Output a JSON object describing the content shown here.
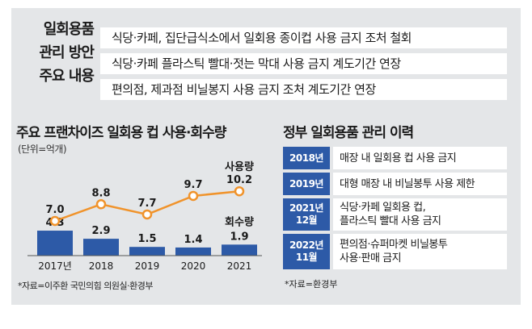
{
  "policy": {
    "title": "일회용품\n관리 방안\n주요 내용",
    "items": [
      "식당·카페, 집단급식소에서 일회용 종이컵 사용 금지 조처 철회",
      "식당·카페 플라스틱 빨대·젓는 막대 사용 금지 계도기간 연장",
      "편의점, 제과점 비닐봉지 사용 금지 조처 계도기간 연장"
    ]
  },
  "chart": {
    "title": "주요 프랜차이즈 일회용 컵 사용·회수량",
    "unit": "(단위=억개)",
    "source": "*자료=이주환 국민의힘 의원실·환경부"
  },
  "chart_data": {
    "type": "bar+line",
    "categories": [
      "2017년",
      "2018",
      "2019",
      "2020",
      "2021"
    ],
    "series": [
      {
        "name": "사용량",
        "type": "line",
        "values": [
          7.0,
          8.8,
          7.7,
          9.7,
          10.2
        ],
        "color": "#f0932b"
      },
      {
        "name": "회수량",
        "type": "bar",
        "values": [
          4.3,
          2.9,
          1.5,
          1.4,
          1.9
        ],
        "color": "#2d5aa7"
      }
    ],
    "value_labels": {
      "line": [
        "7.0",
        "8.8",
        "7.7",
        "9.7",
        "10.2"
      ],
      "bar": [
        "4.3",
        "2.9",
        "1.5",
        "1.4",
        "1.9"
      ]
    },
    "xlabel": "",
    "ylabel": "",
    "grid": false,
    "legend": "labels placed beside the last point of each series"
  },
  "history": {
    "title": "정부 일회용품 관리 이력",
    "items": [
      {
        "date": "2018년",
        "desc": "매장 내 일회용 컵 사용 금지"
      },
      {
        "date": "2019년",
        "desc": "대형 매장 내 비닐봉투 사용 제한"
      },
      {
        "date": "2021년\n12월",
        "desc": "식당·카페 일회용 컵,\n플라스틱 빨대 사용 금지"
      },
      {
        "date": "2022년\n11월",
        "desc": "편의점·슈퍼마켓 비닐봉투\n사용·판매 금지"
      }
    ],
    "source": "*자료=환경부"
  },
  "colors": {
    "panel": "#e4e6e8",
    "accent_blue": "#2d5aa7",
    "accent_orange": "#f0932b"
  }
}
